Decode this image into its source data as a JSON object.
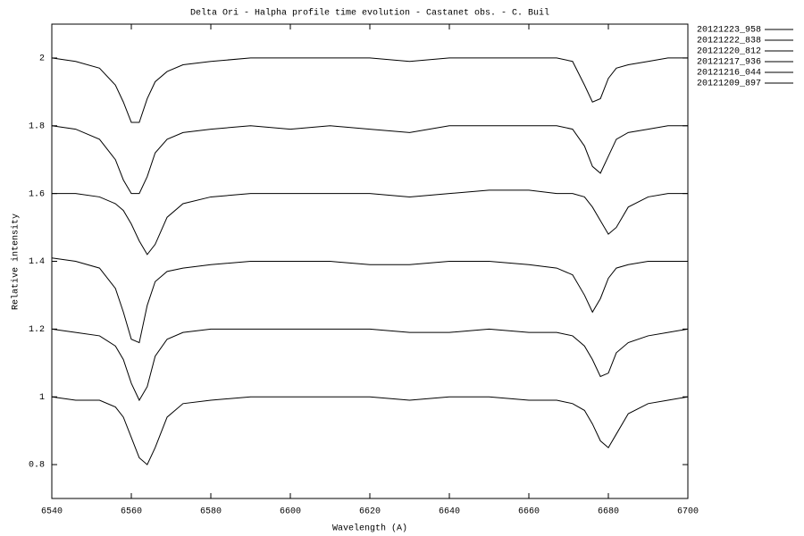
{
  "chart_data": {
    "type": "line",
    "title": "Delta Ori - Halpha profile time evolution - Castanet obs. - C. Buil",
    "x_label": "Wavelength (A)",
    "y_label": "Relative intensity",
    "x": [
      6540,
      6546,
      6552,
      6556,
      6558,
      6560,
      6562,
      6564,
      6566,
      6569,
      6573,
      6580,
      6590,
      6600,
      6610,
      6620,
      6630,
      6640,
      6650,
      6660,
      6667,
      6671,
      6674,
      6676,
      6678,
      6680,
      6682,
      6685,
      6690,
      6695,
      6700
    ],
    "series": [
      {
        "name": "20121223_958",
        "color": "#000000",
        "values": [
          2.0,
          1.99,
          1.97,
          1.92,
          1.87,
          1.81,
          1.81,
          1.88,
          1.93,
          1.96,
          1.98,
          1.99,
          2.0,
          2.0,
          2.0,
          2.0,
          1.99,
          2.0,
          2.0,
          2.0,
          2.0,
          1.99,
          1.92,
          1.87,
          1.88,
          1.94,
          1.97,
          1.98,
          1.99,
          2.0,
          2.0
        ]
      },
      {
        "name": "20121222_838",
        "color": "#000000",
        "values": [
          1.8,
          1.79,
          1.76,
          1.7,
          1.64,
          1.6,
          1.6,
          1.65,
          1.72,
          1.76,
          1.78,
          1.79,
          1.8,
          1.79,
          1.8,
          1.79,
          1.78,
          1.8,
          1.8,
          1.8,
          1.8,
          1.79,
          1.74,
          1.68,
          1.66,
          1.71,
          1.76,
          1.78,
          1.79,
          1.8,
          1.8
        ]
      },
      {
        "name": "20121220_812",
        "color": "#000000",
        "values": [
          1.6,
          1.6,
          1.59,
          1.57,
          1.55,
          1.51,
          1.46,
          1.42,
          1.45,
          1.53,
          1.57,
          1.59,
          1.6,
          1.6,
          1.6,
          1.6,
          1.59,
          1.6,
          1.61,
          1.61,
          1.6,
          1.6,
          1.59,
          1.56,
          1.52,
          1.48,
          1.5,
          1.56,
          1.59,
          1.6,
          1.6
        ]
      },
      {
        "name": "20121217_936",
        "color": "#000000",
        "values": [
          1.41,
          1.4,
          1.38,
          1.32,
          1.25,
          1.17,
          1.16,
          1.27,
          1.34,
          1.37,
          1.38,
          1.39,
          1.4,
          1.4,
          1.4,
          1.39,
          1.39,
          1.4,
          1.4,
          1.39,
          1.38,
          1.36,
          1.3,
          1.25,
          1.29,
          1.35,
          1.38,
          1.39,
          1.4,
          1.4,
          1.4
        ]
      },
      {
        "name": "20121216_044",
        "color": "#000000",
        "values": [
          1.2,
          1.19,
          1.18,
          1.15,
          1.11,
          1.04,
          0.99,
          1.03,
          1.12,
          1.17,
          1.19,
          1.2,
          1.2,
          1.2,
          1.2,
          1.2,
          1.19,
          1.19,
          1.2,
          1.19,
          1.19,
          1.18,
          1.15,
          1.11,
          1.06,
          1.07,
          1.13,
          1.16,
          1.18,
          1.19,
          1.2
        ]
      },
      {
        "name": "20121209_897",
        "color": "#000000",
        "values": [
          1.0,
          0.99,
          0.99,
          0.97,
          0.94,
          0.88,
          0.82,
          0.8,
          0.85,
          0.94,
          0.98,
          0.99,
          1.0,
          1.0,
          1.0,
          1.0,
          0.99,
          1.0,
          1.0,
          0.99,
          0.99,
          0.98,
          0.96,
          0.92,
          0.87,
          0.85,
          0.89,
          0.95,
          0.98,
          0.99,
          1.0
        ]
      }
    ],
    "xlim": [
      6540,
      6700
    ],
    "xticks": [
      6540,
      6560,
      6580,
      6600,
      6620,
      6640,
      6660,
      6680,
      6700
    ],
    "ylim": [
      0.7,
      2.1
    ],
    "yticks": [
      0.8,
      1,
      1.2,
      1.4,
      1.6,
      1.8,
      2
    ],
    "grid": false,
    "legend": "outside-top-right"
  }
}
